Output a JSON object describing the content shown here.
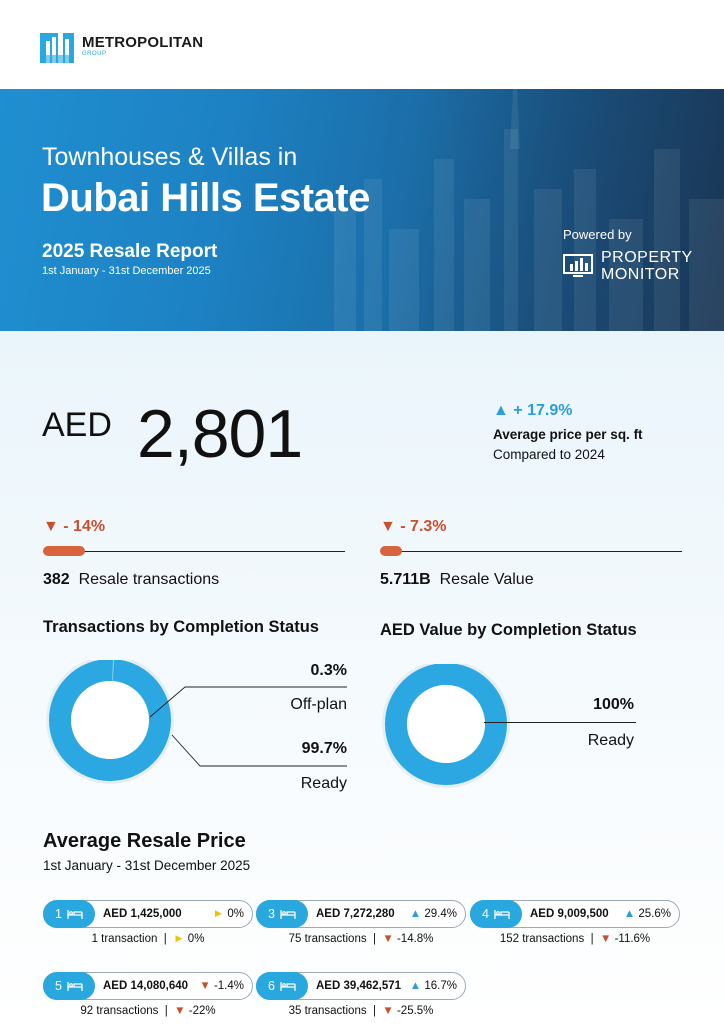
{
  "brand": {
    "name": "METROPOLITAN",
    "sub": "GROUP"
  },
  "hero": {
    "title_line1": "Townhouses & Villas in",
    "title_line2": "Dubai Hills Estate",
    "report": "2025 Resale Report",
    "dates": "1st January - 31st December 2025",
    "powered_by": "Powered by",
    "partner_line1": "PROPERTY",
    "partner_line2": "MONITOR"
  },
  "kpi": {
    "currency": "AED",
    "value": "2,801",
    "change": "▲ + 17.9%",
    "label": "Average price per sq. ft",
    "compare": "Compared to 2024"
  },
  "transactions": {
    "change": "▼ - 14%",
    "value": "382",
    "label": "Resale transactions"
  },
  "resale_value": {
    "change": "▼ - 7.3%",
    "value": "5.711B",
    "label": "Resale Value"
  },
  "completion_tx": {
    "title": "Transactions by Completion Status",
    "offplan_pct": "0.3%",
    "offplan_label": "Off-plan",
    "ready_pct": "99.7%",
    "ready_label": "Ready",
    "offplan_share": 0.3,
    "ready_share": 99.7
  },
  "completion_value": {
    "title": "AED Value by Completion Status",
    "ready_pct": "100%",
    "ready_label": "Ready",
    "ready_share": 100
  },
  "average_price": {
    "title": "Average Resale Price",
    "dates": "1st January - 31st December 2025",
    "cards": [
      {
        "beds": "1",
        "price": "AED 1,425,000",
        "trend_icon": "►",
        "trend": "0%",
        "trend_dir": "flat",
        "tx": "1 transaction",
        "tx_icon": "►",
        "tx_change": "0%",
        "tx_dir": "flat"
      },
      {
        "beds": "3",
        "price": "AED 7,272,280",
        "trend_icon": "▲",
        "trend": "29.4%",
        "trend_dir": "up",
        "tx": "75 transactions",
        "tx_icon": "▼",
        "tx_change": "-14.8%",
        "tx_dir": "down"
      },
      {
        "beds": "4",
        "price": "AED 9,009,500",
        "trend_icon": "▲",
        "trend": "25.6%",
        "trend_dir": "up",
        "tx": "152 transactions",
        "tx_icon": "▼",
        "tx_change": "-11.6%",
        "tx_dir": "down"
      },
      {
        "beds": "5",
        "price": "AED 14,080,640",
        "trend_icon": "▼",
        "trend": "-1.4%",
        "trend_dir": "down",
        "tx": "92 transactions",
        "tx_icon": "▼",
        "tx_change": "-22%",
        "tx_dir": "down"
      },
      {
        "beds": "6",
        "price": "AED 39,462,571",
        "trend_icon": "▲",
        "trend": "16.7%",
        "trend_dir": "up",
        "tx": "35 transactions",
        "tx_icon": "▼",
        "tx_change": "-25.5%",
        "tx_dir": "down"
      }
    ]
  },
  "colors": {
    "accent": "#29a8e0",
    "down": "#c8502f",
    "flat": "#f0c400",
    "bar": "#d8643f"
  }
}
